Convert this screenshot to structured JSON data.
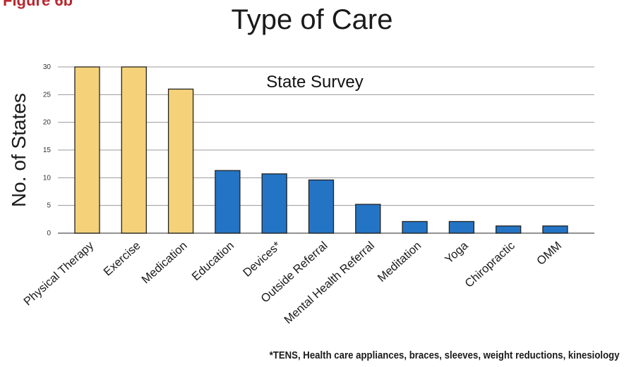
{
  "figure_label": "Figure 6b",
  "footnote": "*TENS, Health care appliances, braces, sleeves, weight reductions, kinesiology",
  "colors": {
    "highlight": "#f5d27a",
    "standard": "#2374c4",
    "bar_border": "#222222",
    "grid": "#9a9a9a"
  },
  "chart_data": {
    "type": "bar",
    "title": "Type of Care",
    "subtitle": "State Survey",
    "xlabel": "",
    "ylabel": "No. of States",
    "ylim": [
      0,
      30
    ],
    "yticks": [
      0,
      5,
      10,
      15,
      20,
      25,
      30
    ],
    "grid": true,
    "categories": [
      "Physical Therapy",
      "Exercise",
      "Medication",
      "Education",
      "Devices*",
      "Outside Referral",
      "Mental Health Referral",
      "Meditation",
      "Yoga",
      "Chiropractic",
      "OMM"
    ],
    "values": [
      30,
      30,
      26,
      11.3,
      10.7,
      9.6,
      5.2,
      2.1,
      2.1,
      1.3,
      1.3
    ],
    "bar_colors": [
      "highlight",
      "highlight",
      "highlight",
      "standard",
      "standard",
      "standard",
      "standard",
      "standard",
      "standard",
      "standard",
      "standard"
    ]
  }
}
